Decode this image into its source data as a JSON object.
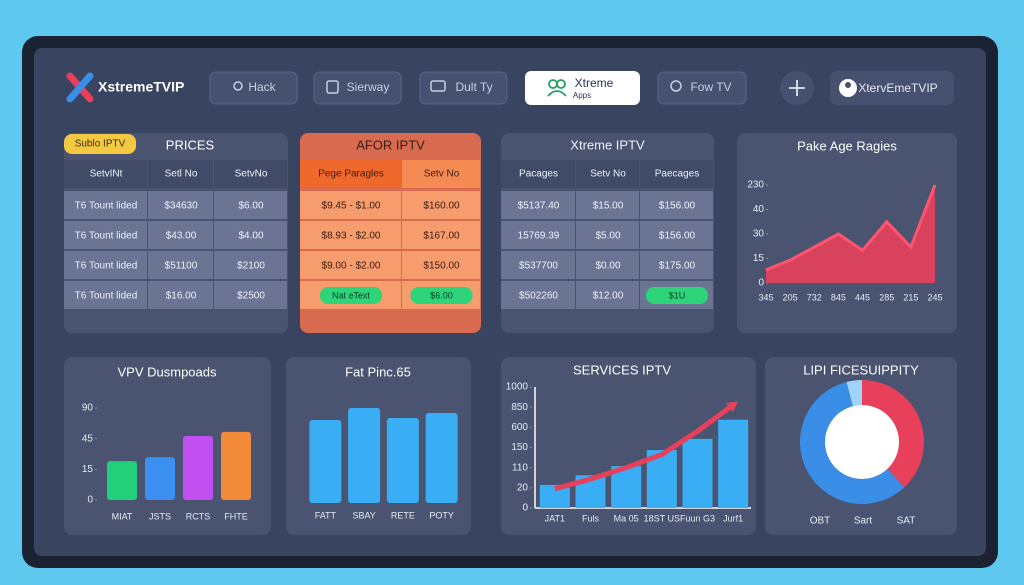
{
  "nav": {
    "logo": "XstremeTVIP",
    "tabs": [
      {
        "label": "Hack"
      },
      {
        "label": "Sierway"
      },
      {
        "label": "Dult Ty"
      },
      {
        "label": "Xtreme",
        "sublabel": "Apps",
        "active": true
      },
      {
        "label": "Fow TV"
      }
    ],
    "user": "XtervEmeTVIP"
  },
  "tables": [
    {
      "badge": "Sublo IPTV",
      "title": "PRICES",
      "header": [
        "SetvINt",
        "Setl No",
        "SetvNo"
      ],
      "rows": [
        [
          "T6 Tount lided",
          "$34630",
          "$6.00"
        ],
        [
          "T6 Tount lided",
          "$43.00",
          "$4.00"
        ],
        [
          "T6 Tount lided",
          "$51100",
          "$2100"
        ],
        [
          "T6 Tount lided",
          "$16.00",
          "$2500"
        ]
      ]
    },
    {
      "title": "AFOR IPTV",
      "header": [
        "Pege Paragles",
        "Setv No"
      ],
      "rows": [
        [
          "$9.45 - $1.00",
          "$160.00"
        ],
        [
          "$8.93 - $2.00",
          "$167.00"
        ],
        [
          "$9.00 - $2.00",
          "$150.00"
        ],
        [
          "Nat eText",
          "$6.00"
        ]
      ]
    },
    {
      "title": "Xtreme IPTV",
      "header": [
        "Pacages",
        "Setv No",
        "Paecages"
      ],
      "rows": [
        [
          "$5137.40",
          "$15.00",
          "$156.00"
        ],
        [
          "15769.39",
          "$5.00",
          "$156.00"
        ],
        [
          "$537700",
          "$0.00",
          "$175.00"
        ],
        [
          "$502260",
          "$12.00",
          "$1U"
        ]
      ]
    }
  ],
  "chart_data": [
    {
      "type": "area",
      "title": "Pake Age Ragies",
      "categories": [
        "345",
        "205",
        "732",
        "845",
        "445",
        "285",
        "215",
        "245"
      ],
      "values": [
        8,
        14,
        22,
        30,
        20,
        35,
        22,
        230
      ],
      "color": "#e8405a",
      "ylim": [
        0,
        230
      ],
      "yticks": [
        0,
        15,
        30,
        40,
        230
      ]
    },
    {
      "type": "bar",
      "title": "VPV Dusmpoads",
      "categories": [
        "MIAT",
        "JSTS",
        "RCTS",
        "FHTE"
      ],
      "values": [
        23,
        27,
        49,
        55
      ],
      "colors": [
        "#22d07c",
        "#3b8ff0",
        "#c24ff0",
        "#f28a3a"
      ],
      "ylim": [
        0,
        90
      ],
      "yticks": [
        0,
        15,
        45,
        90
      ]
    },
    {
      "type": "bar",
      "title": "Fat Pinc.65",
      "categories": [
        "FATT",
        "SBAY",
        "RETE",
        "POTY"
      ],
      "values": [
        83,
        95,
        85,
        90
      ],
      "color": "#3aaef5",
      "ylim": [
        0,
        100
      ]
    },
    {
      "type": "combo",
      "title": "SERVICES IPTV",
      "categories": [
        "JAT1",
        "Fuls",
        "Ma 05",
        "18ST US",
        "Fuun G3",
        "Jurf1"
      ],
      "series": [
        {
          "type": "bar",
          "color": "#3aaef5",
          "values": [
            33,
            76,
            113,
            145,
            343,
            695
          ]
        },
        {
          "type": "line",
          "color": "#e8405a",
          "values": [
            19,
            59,
            110,
            136,
            514,
            867
          ]
        }
      ],
      "ylim": [
        0,
        1000
      ],
      "yticks": [
        0,
        20,
        110,
        150,
        600,
        850,
        1000
      ]
    },
    {
      "type": "donut",
      "title": "LIPI FICESUIPPITY",
      "categories": [
        "OBT",
        "Sart",
        "SAT"
      ],
      "values": [
        38,
        58,
        4
      ],
      "colors": [
        "#e8405a",
        "#3a8ee8",
        "#9fd3f7"
      ]
    }
  ]
}
